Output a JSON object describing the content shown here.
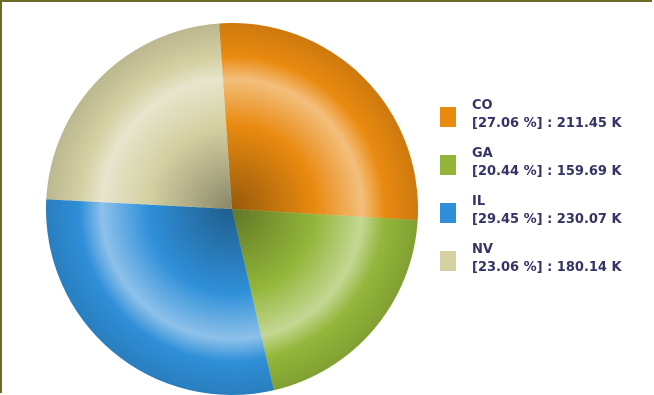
{
  "chart_data": {
    "type": "pie",
    "title": "",
    "slices": [
      {
        "label": "CO",
        "value": 211.45,
        "percent_text": "[27.06 %] : 211.45 K",
        "color": "#e98a10"
      },
      {
        "label": "GA",
        "value": 159.69,
        "percent_text": "[20.44 %] : 159.69 K",
        "color": "#93b63a"
      },
      {
        "label": "IL",
        "value": 230.07,
        "percent_text": "[29.45 %] : 230.07 K",
        "color": "#2f8fd8"
      },
      {
        "label": "NV",
        "value": 180.14,
        "percent_text": "[23.06 %] : 180.14 K",
        "color": "#d4d0a2"
      }
    ],
    "legend_position": "right"
  }
}
